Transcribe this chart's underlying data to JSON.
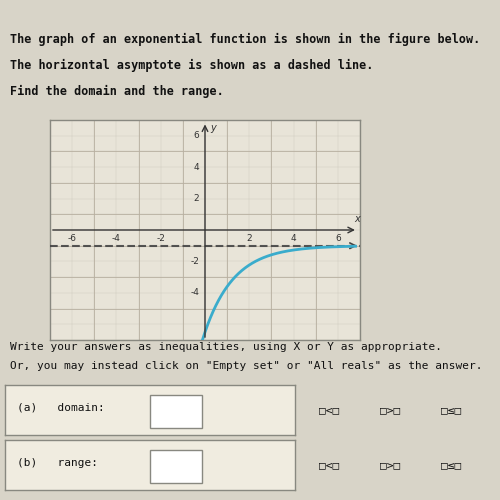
{
  "title_lines": [
    "The graph of an exponential function is shown in the figure below.",
    "The horizontal asymptote is shown as a dashed line.",
    "Find the domain and the range."
  ],
  "footer_lines": [
    "Write your answers as inequalities, using X or Y as appropriate.",
    "Or, you may instead click on \"Empty set\" or \"All reals\" as the answer."
  ],
  "asymptote_y": -1,
  "x_min": -7,
  "x_max": 7,
  "y_min": -7,
  "y_max": 7,
  "curve_color": "#3aaccc",
  "asymptote_color": "#444444",
  "axis_color": "#333333",
  "grid_color_major": "#b8b0a0",
  "grid_color_minor": "#ccc8bc",
  "page_bg": "#d8d4c8",
  "plot_bg": "#e8e4d8",
  "plot_border": "#888880",
  "text_color": "#111111",
  "answer_box_bg": "#f0ece0",
  "answer_box_border": "#888880",
  "title_fontsize": 8.5,
  "footer_fontsize": 8.0,
  "tick_fontsize": 6.5,
  "tick_labels_x": [
    -6,
    -4,
    -2,
    2,
    4,
    6
  ],
  "tick_labels_y": [
    -4,
    -2,
    2,
    4,
    6
  ],
  "domain_label": "(a)   domain:",
  "range_label": "(b)   range:",
  "checkbox_row1": [
    "□<□",
    "□>□",
    "□≤□"
  ],
  "dark_bar_color": "#2a6040",
  "top_bar_color": "#2a6040"
}
